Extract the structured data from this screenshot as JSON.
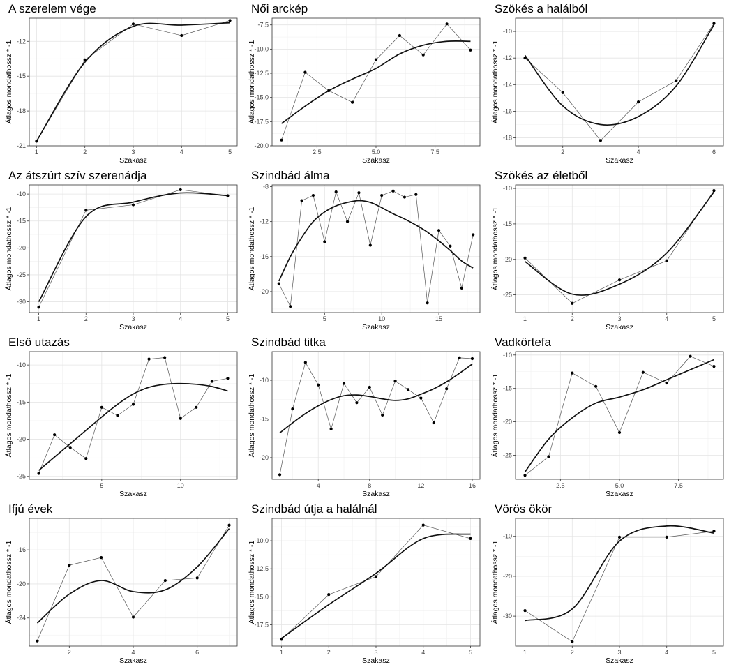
{
  "chart_data": [
    {
      "type": "line",
      "title": "A szerelem vége",
      "xlabel": "Szakasz",
      "ylabel": "Átlagos mondathossz * -1",
      "x": [
        1,
        2,
        3,
        4,
        5
      ],
      "values": [
        -20.6,
        -13.6,
        -10.5,
        -11.5,
        -10.2
      ],
      "smooth": [
        -20.6,
        -13.8,
        -10.7,
        -10.6,
        -10.4
      ],
      "xlim": [
        0.85,
        5.15
      ],
      "ylim": [
        -21,
        -10
      ],
      "xticks": [
        1,
        2,
        3,
        4,
        5
      ],
      "yticks": [
        -21,
        -18,
        -15,
        -12
      ],
      "grid": true,
      "legend": "none"
    },
    {
      "type": "line",
      "title": "Női arckép",
      "xlabel": "Szakasz",
      "ylabel": "Átlagos mondathossz * -1",
      "x": [
        1,
        2,
        3,
        4,
        5,
        6,
        7,
        8,
        9
      ],
      "values": [
        -19.4,
        -12.4,
        -14.3,
        -15.5,
        -11.1,
        -8.6,
        -10.6,
        -7.4,
        -10.1
      ],
      "smooth": [
        -17.7,
        -15.9,
        -14.3,
        -13.1,
        -12.0,
        -10.5,
        -9.6,
        -9.2,
        -9.2
      ],
      "xlim": [
        0.6,
        9.4
      ],
      "ylim": [
        -20,
        -6.8
      ],
      "xticks": [
        2.5,
        5.0,
        7.5
      ],
      "yticks": [
        -20.0,
        -17.5,
        -15.0,
        -12.5,
        -10.0,
        -7.5
      ],
      "grid": true,
      "legend": "none"
    },
    {
      "type": "line",
      "title": "Szökés a halálból",
      "xlabel": "Szakasz",
      "ylabel": "Átlagos mondathossz * -1",
      "x": [
        1,
        2,
        3,
        4,
        5,
        6
      ],
      "values": [
        -12.0,
        -14.6,
        -18.2,
        -15.3,
        -13.7,
        -9.4
      ],
      "smooth": [
        -11.8,
        -15.6,
        -17.0,
        -16.4,
        -14.1,
        -9.5
      ],
      "xlim": [
        0.75,
        6.25
      ],
      "ylim": [
        -18.6,
        -9
      ],
      "xticks": [
        2,
        4,
        6
      ],
      "yticks": [
        -18,
        -16,
        -14,
        -12,
        -10
      ],
      "grid": true,
      "legend": "none"
    },
    {
      "type": "line",
      "title": "Az átszúrt szív szerenádja",
      "xlabel": "Szakasz",
      "ylabel": "Átlagos mondathossz * -1",
      "x": [
        1,
        2,
        3,
        4,
        5
      ],
      "values": [
        -31.0,
        -13.0,
        -12.0,
        -9.2,
        -10.3
      ],
      "smooth": [
        -30.0,
        -14.2,
        -11.5,
        -9.8,
        -10.3
      ],
      "xlim": [
        0.8,
        5.2
      ],
      "ylim": [
        -32,
        -8.3
      ],
      "xticks": [
        1,
        2,
        3,
        4,
        5
      ],
      "yticks": [
        -30,
        -25,
        -20,
        -15,
        -10
      ],
      "grid": true,
      "legend": "none"
    },
    {
      "type": "line",
      "title": "Szindbád álma",
      "xlabel": "Szakasz",
      "ylabel": "Átlagos mondathossz * -1",
      "x": [
        1,
        2,
        3,
        4,
        5,
        6,
        7,
        8,
        9,
        10,
        11,
        12,
        13,
        14,
        15,
        16,
        17,
        18
      ],
      "values": [
        -19.1,
        -21.7,
        -9.6,
        -9.0,
        -14.3,
        -8.6,
        -12.0,
        -8.7,
        -14.7,
        -9.0,
        -8.5,
        -9.2,
        -8.9,
        -21.3,
        -13.0,
        -14.8,
        -19.6,
        -13.5
      ],
      "smooth": [
        -18.8,
        -16.0,
        -13.8,
        -12.0,
        -10.9,
        -10.2,
        -9.8,
        -9.6,
        -9.8,
        -10.4,
        -11.1,
        -11.7,
        -12.4,
        -13.2,
        -14.2,
        -15.3,
        -16.5,
        -17.3
      ],
      "xlim": [
        0.4,
        18.6
      ],
      "ylim": [
        -22.4,
        -7.8
      ],
      "xticks": [
        5,
        10,
        15
      ],
      "yticks": [
        -20,
        -16,
        -12,
        -8
      ],
      "grid": true,
      "legend": "none"
    },
    {
      "type": "line",
      "title": "Szökés az életből",
      "xlabel": "Szakasz",
      "ylabel": "Átlagos mondathossz * -1",
      "x": [
        1,
        2,
        3,
        4,
        5
      ],
      "values": [
        -19.8,
        -26.2,
        -22.9,
        -20.2,
        -10.3
      ],
      "smooth": [
        -20.3,
        -24.9,
        -23.5,
        -19.1,
        -10.5
      ],
      "xlim": [
        0.8,
        5.2
      ],
      "ylim": [
        -27.5,
        -9.5
      ],
      "xticks": [
        1,
        2,
        3,
        4,
        5
      ],
      "yticks": [
        -25,
        -20,
        -15,
        -10
      ],
      "grid": true,
      "legend": "none"
    },
    {
      "type": "line",
      "title": "Első utazás",
      "xlabel": "Szakasz",
      "ylabel": "Átlagos mondathossz * -1",
      "x": [
        1,
        2,
        3,
        4,
        5,
        6,
        7,
        8,
        9,
        10,
        11,
        12,
        13
      ],
      "values": [
        -24.6,
        -19.4,
        -21.1,
        -22.6,
        -15.7,
        -16.8,
        -15.3,
        -9.2,
        -9.0,
        -17.2,
        -15.7,
        -12.2,
        -11.8
      ],
      "smooth": [
        -24.2,
        -22.4,
        -20.6,
        -18.8,
        -17.0,
        -15.3,
        -13.9,
        -13.0,
        -12.6,
        -12.5,
        -12.6,
        -12.9,
        -13.5
      ],
      "xlim": [
        0.4,
        13.6
      ],
      "ylim": [
        -25.4,
        -8.2
      ],
      "xticks": [
        5,
        10
      ],
      "yticks": [
        -25,
        -20,
        -15,
        -10
      ],
      "grid": true,
      "legend": "none"
    },
    {
      "type": "line",
      "title": "Szindbád titka",
      "xlabel": "Szakasz",
      "ylabel": "Átlagos mondathossz * -1",
      "x": [
        1,
        2,
        3,
        4,
        5,
        6,
        7,
        8,
        9,
        10,
        11,
        12,
        13,
        14,
        15,
        16
      ],
      "values": [
        -22.2,
        -13.7,
        -7.7,
        -10.6,
        -16.3,
        -10.4,
        -12.9,
        -10.9,
        -14.5,
        -10.1,
        -11.2,
        -12.3,
        -15.5,
        -11.1,
        -7.1,
        -7.2
      ],
      "smooth": [
        -16.8,
        -15.5,
        -14.3,
        -13.3,
        -12.5,
        -12.0,
        -11.9,
        -12.1,
        -12.4,
        -12.6,
        -12.4,
        -11.8,
        -11.1,
        -10.2,
        -9.1,
        -7.9
      ],
      "xlim": [
        0.4,
        16.6
      ],
      "ylim": [
        -22.8,
        -6.3
      ],
      "xticks": [
        4,
        8,
        12,
        16
      ],
      "yticks": [
        -20,
        -15,
        -10
      ],
      "grid": true,
      "legend": "none"
    },
    {
      "type": "line",
      "title": "Vadkörtefa",
      "xlabel": "Szakasz",
      "ylabel": "Átlagos mondathossz * -1",
      "x": [
        1,
        2,
        3,
        4,
        5,
        6,
        7,
        8,
        9
      ],
      "values": [
        -28.0,
        -25.2,
        -12.7,
        -14.7,
        -21.6,
        -12.6,
        -14.2,
        -10.2,
        -11.7
      ],
      "smooth": [
        -27.5,
        -22.6,
        -19.4,
        -17.2,
        -16.3,
        -15.2,
        -13.7,
        -12.2,
        -10.7
      ],
      "xlim": [
        0.6,
        9.4
      ],
      "ylim": [
        -28.6,
        -9.5
      ],
      "xticks": [
        2.5,
        5.0,
        7.5
      ],
      "yticks": [
        -25,
        -20,
        -15,
        -10
      ],
      "grid": true,
      "legend": "none"
    },
    {
      "type": "line",
      "title": "Ifjú évek",
      "xlabel": "Szakasz",
      "ylabel": "Átlagos mondathossz * -1",
      "x": [
        1,
        2,
        3,
        4,
        5,
        6,
        7
      ],
      "values": [
        -26.7,
        -17.8,
        -16.9,
        -23.9,
        -19.6,
        -19.3,
        -13.1
      ],
      "smooth": [
        -24.6,
        -21.2,
        -19.6,
        -20.9,
        -20.7,
        -18.0,
        -13.5
      ],
      "xlim": [
        0.75,
        7.25
      ],
      "ylim": [
        -27.3,
        -12.3
      ],
      "xticks": [
        2,
        4,
        6
      ],
      "yticks": [
        -24,
        -20,
        -16
      ],
      "grid": true,
      "legend": "none"
    },
    {
      "type": "line",
      "title": "Szindbád útja a halálnál",
      "xlabel": "Szakasz",
      "ylabel": "Átlagos mondathossz * -1",
      "x": [
        1,
        2,
        3,
        4,
        5
      ],
      "values": [
        -18.8,
        -14.8,
        -13.2,
        -8.6,
        -9.8
      ],
      "smooth": [
        -18.7,
        -15.7,
        -12.9,
        -9.8,
        -9.4
      ],
      "xlim": [
        0.8,
        5.2
      ],
      "ylim": [
        -19.4,
        -8.0
      ],
      "xticks": [
        1,
        2,
        3,
        4,
        5
      ],
      "yticks": [
        -17.5,
        -15.0,
        -12.5,
        -10.0
      ],
      "grid": true,
      "legend": "none"
    },
    {
      "type": "line",
      "title": "Vörös ökör",
      "xlabel": "Szakasz",
      "ylabel": "Átlagos mondathossz * -1",
      "x": [
        1,
        2,
        3,
        4,
        5
      ],
      "values": [
        -28.6,
        -36.4,
        -10.2,
        -10.2,
        -8.7
      ],
      "smooth": [
        -31.1,
        -28.2,
        -11.2,
        -7.4,
        -9.2
      ],
      "xlim": [
        0.8,
        5.2
      ],
      "ylim": [
        -37.5,
        -5.5
      ],
      "xticks": [
        1,
        2,
        3,
        4,
        5
      ],
      "yticks": [
        -30,
        -20,
        -10
      ],
      "grid": true,
      "legend": "none"
    }
  ]
}
